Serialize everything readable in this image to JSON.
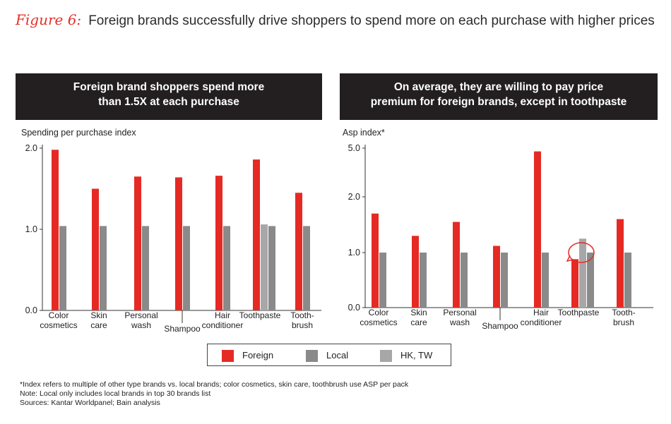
{
  "figure": {
    "label": "Figure 6:",
    "title": "Foreign brands successfully drive shoppers to spend more on each purchase with higher prices"
  },
  "colors": {
    "foreign": "#e52a24",
    "local": "#8a8a8a",
    "hktw": "#a7a7a7"
  },
  "legend": [
    {
      "name": "Foreign",
      "color": "#e52a24"
    },
    {
      "name": "Local",
      "color": "#8a8a8a"
    },
    {
      "name": "HK, TW",
      "color": "#a7a7a7"
    }
  ],
  "chart_data": [
    {
      "type": "bar",
      "header": [
        "Foreign brand shoppers spend more",
        "than 1.5X at each purchase"
      ],
      "ylabel": "Spending per purchase index",
      "y_ticks": [
        "2.0",
        "1.0",
        "0.0"
      ],
      "ylim": [
        0,
        2.0
      ],
      "categories": [
        {
          "label": [
            "Color",
            "cosmetics"
          ]
        },
        {
          "label": [
            "Skin",
            "care"
          ]
        },
        {
          "label": [
            "Personal",
            "wash"
          ]
        },
        {
          "label": [
            "Shampoo"
          ],
          "offset": "low"
        },
        {
          "label": [
            "Hair",
            "conditioner"
          ]
        },
        {
          "label": [
            "Toothpaste"
          ]
        },
        {
          "label": [
            "Tooth-",
            "brush"
          ]
        }
      ],
      "series": [
        {
          "name": "Foreign",
          "values": [
            1.98,
            1.5,
            1.65,
            1.64,
            1.66,
            1.86,
            1.45
          ]
        },
        {
          "name": "HK, TW",
          "values": [
            null,
            null,
            null,
            null,
            null,
            1.06,
            null
          ]
        },
        {
          "name": "Local",
          "values": [
            1.04,
            1.04,
            1.04,
            1.04,
            1.04,
            1.04,
            1.04
          ]
        }
      ]
    },
    {
      "type": "bar",
      "header": [
        "On average, they are willing to pay price",
        "premium for foreign brands, except in toothpaste"
      ],
      "ylabel": "Asp index*",
      "y_ticks": [
        "5.0",
        "2.0",
        "1.0",
        "0.0"
      ],
      "y_scale": "piecewise",
      "categories": [
        {
          "label": [
            "Color",
            "cosmetics"
          ]
        },
        {
          "label": [
            "Skin",
            "care"
          ]
        },
        {
          "label": [
            "Personal",
            "wash"
          ]
        },
        {
          "label": [
            "Shampoo"
          ],
          "offset": "low"
        },
        {
          "label": [
            "Hair",
            "conditioner"
          ]
        },
        {
          "label": [
            "Toothpaste"
          ],
          "highlighted": true
        },
        {
          "label": [
            "Tooth-",
            "brush"
          ]
        }
      ],
      "series": [
        {
          "name": "Foreign",
          "values": [
            1.7,
            1.3,
            1.55,
            1.12,
            4.8,
            0.88,
            1.6
          ]
        },
        {
          "name": "HK, TW",
          "values": [
            null,
            null,
            null,
            null,
            null,
            1.25,
            null
          ]
        },
        {
          "name": "Local",
          "values": [
            1.0,
            1.0,
            1.0,
            1.0,
            1.0,
            1.0,
            1.0
          ]
        }
      ]
    }
  ],
  "notes": [
    "*Index refers to multiple of other type brands vs. local brands; color cosmetics, skin care, toothbrush use ASP per pack",
    "Note: Local only includes local brands in top 30 brands list",
    "Sources: Kantar Worldpanel; Bain analysis"
  ]
}
